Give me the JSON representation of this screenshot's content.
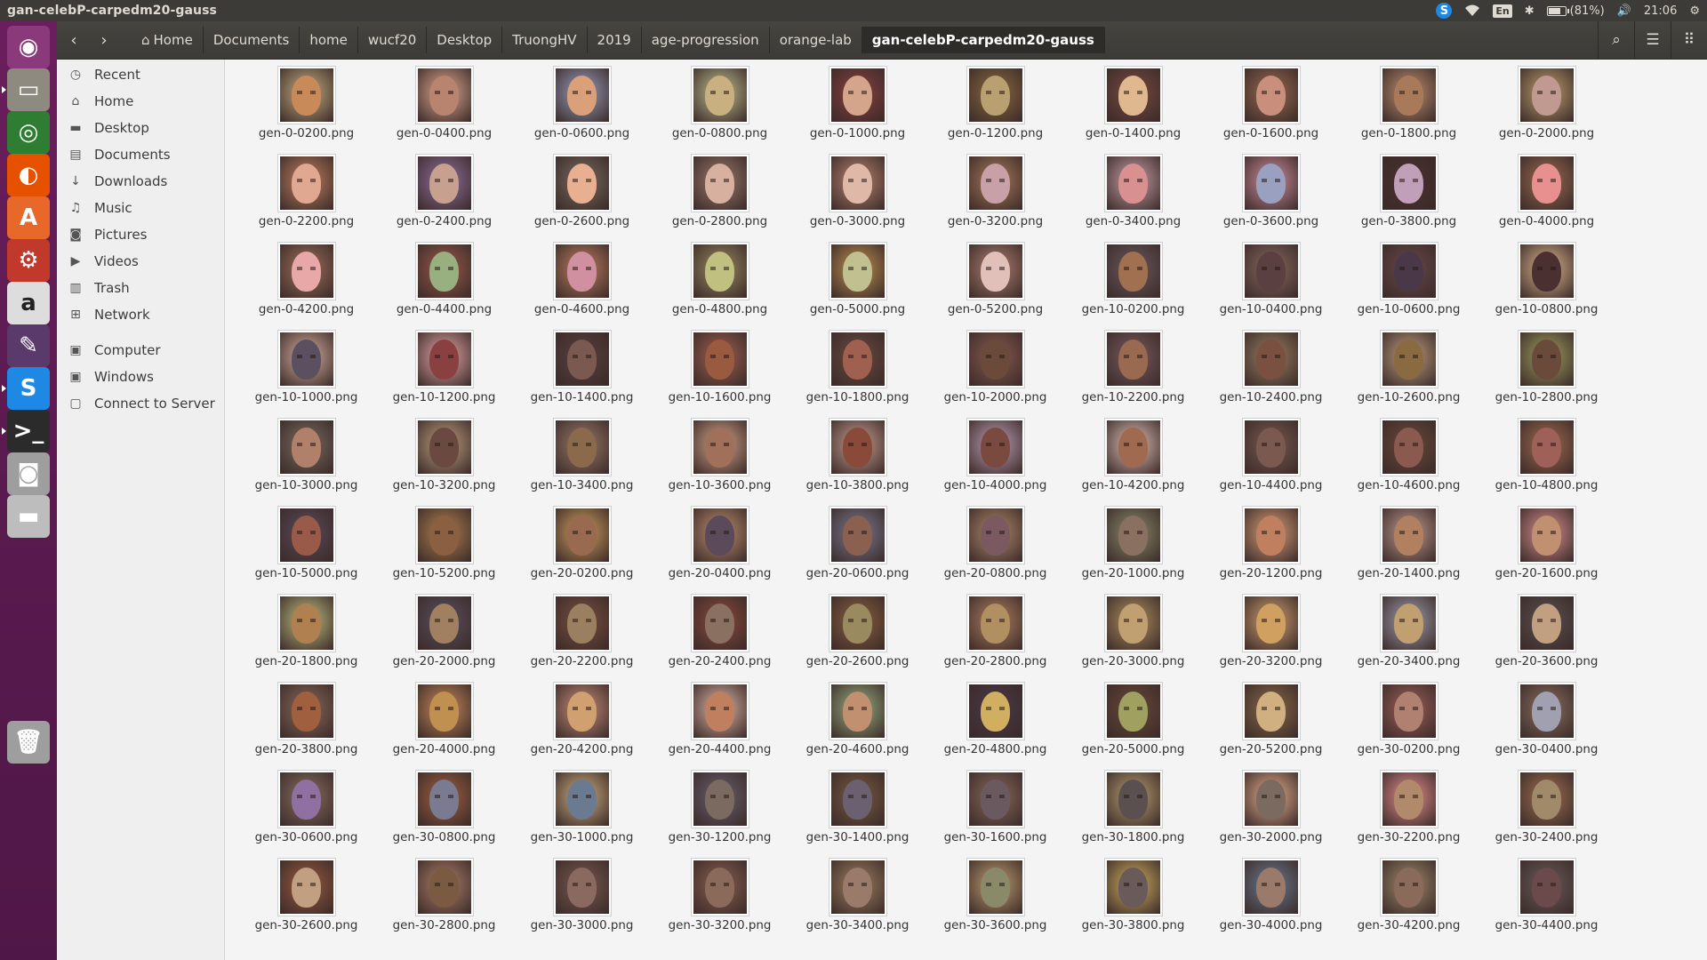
{
  "window": {
    "title": "gan-celebP-carpedm20-gauss"
  },
  "tray": {
    "skype": "S",
    "lang": "En",
    "battery": "(81%)",
    "battery_level": 0.81,
    "time": "21:06"
  },
  "launcher": [
    {
      "name": "ubuntu-dash-icon",
      "color": "#8a3a7a",
      "glyph": "◉"
    },
    {
      "name": "file-manager-icon",
      "color": "#8f8a80",
      "glyph": "▭",
      "running": true
    },
    {
      "name": "chrome-icon",
      "color": "#2e7d32",
      "glyph": "◎"
    },
    {
      "name": "firefox-icon",
      "color": "#e65100",
      "glyph": "◐"
    },
    {
      "name": "software-center-icon",
      "color": "#e8682a",
      "glyph": "A"
    },
    {
      "name": "system-settings-icon",
      "color": "#c0392b",
      "glyph": "⚙"
    },
    {
      "name": "amazon-icon",
      "color": "#dddddd",
      "glyph": "a"
    },
    {
      "name": "libreoffice-draw-icon",
      "color": "#5a3a6a",
      "glyph": "✎"
    },
    {
      "name": "skype-icon",
      "color": "#1e88e5",
      "glyph": "S",
      "running": true
    },
    {
      "name": "terminal-icon",
      "color": "#2b2b2b",
      "glyph": ">_",
      "running": true
    },
    {
      "name": "camera-icon",
      "color": "#9e9e9e",
      "glyph": "◙"
    },
    {
      "name": "drive-icon",
      "color": "#bdbdbd",
      "glyph": "▬"
    },
    {
      "name": "trash-icon",
      "color": "#9e9e9e",
      "glyph": "🗑"
    }
  ],
  "toolbar": {
    "back": "‹",
    "forward": "›",
    "breadcrumb": [
      "Home",
      "Documents",
      "home",
      "wucf20",
      "Desktop",
      "TruongHV",
      "2019",
      "age-progression",
      "orange-lab",
      "gan-celebP-carpedm20-gauss"
    ]
  },
  "sidebar": {
    "places": [
      {
        "label": "Recent",
        "icon": "clock-icon",
        "glyph": "◷"
      },
      {
        "label": "Home",
        "icon": "home-icon",
        "glyph": "⌂"
      },
      {
        "label": "Desktop",
        "icon": "folder-icon",
        "glyph": "▬"
      },
      {
        "label": "Documents",
        "icon": "document-icon",
        "glyph": "▤"
      },
      {
        "label": "Downloads",
        "icon": "download-icon",
        "glyph": "↓"
      },
      {
        "label": "Music",
        "icon": "music-icon",
        "glyph": "♫"
      },
      {
        "label": "Pictures",
        "icon": "camera-icon",
        "glyph": "◙"
      },
      {
        "label": "Videos",
        "icon": "video-icon",
        "glyph": "▶"
      },
      {
        "label": "Trash",
        "icon": "trash-icon",
        "glyph": "▥"
      },
      {
        "label": "Network",
        "icon": "network-icon",
        "glyph": "⊞"
      }
    ],
    "devices": [
      {
        "label": "Computer",
        "icon": "computer-icon",
        "glyph": "▣"
      },
      {
        "label": "Windows",
        "icon": "drive-icon",
        "glyph": "▣"
      },
      {
        "label": "Connect to Server",
        "icon": "server-icon",
        "glyph": "▢"
      }
    ]
  },
  "files": [
    "gen-0-0200.png",
    "gen-0-0400.png",
    "gen-0-0600.png",
    "gen-0-0800.png",
    "gen-0-1000.png",
    "gen-0-1200.png",
    "gen-0-1400.png",
    "gen-0-1600.png",
    "gen-0-1800.png",
    "gen-0-2000.png",
    "gen-0-2200.png",
    "gen-0-2400.png",
    "gen-0-2600.png",
    "gen-0-2800.png",
    "gen-0-3000.png",
    "gen-0-3200.png",
    "gen-0-3400.png",
    "gen-0-3600.png",
    "gen-0-3800.png",
    "gen-0-4000.png",
    "gen-0-4200.png",
    "gen-0-4400.png",
    "gen-0-4600.png",
    "gen-0-4800.png",
    "gen-0-5000.png",
    "gen-0-5200.png",
    "gen-10-0200.png",
    "gen-10-0400.png",
    "gen-10-0600.png",
    "gen-10-0800.png",
    "gen-10-1000.png",
    "gen-10-1200.png",
    "gen-10-1400.png",
    "gen-10-1600.png",
    "gen-10-1800.png",
    "gen-10-2000.png",
    "gen-10-2200.png",
    "gen-10-2400.png",
    "gen-10-2600.png",
    "gen-10-2800.png",
    "gen-10-3000.png",
    "gen-10-3200.png",
    "gen-10-3400.png",
    "gen-10-3600.png",
    "gen-10-3800.png",
    "gen-10-4000.png",
    "gen-10-4200.png",
    "gen-10-4400.png",
    "gen-10-4600.png",
    "gen-10-4800.png",
    "gen-10-5000.png",
    "gen-10-5200.png",
    "gen-20-0200.png",
    "gen-20-0400.png",
    "gen-20-0600.png",
    "gen-20-0800.png",
    "gen-20-1000.png",
    "gen-20-1200.png",
    "gen-20-1400.png",
    "gen-20-1600.png",
    "gen-20-1800.png",
    "gen-20-2000.png",
    "gen-20-2200.png",
    "gen-20-2400.png",
    "gen-20-2600.png",
    "gen-20-2800.png",
    "gen-20-3000.png",
    "gen-20-3200.png",
    "gen-20-3400.png",
    "gen-20-3600.png",
    "gen-20-3800.png",
    "gen-20-4000.png",
    "gen-20-4200.png",
    "gen-20-4400.png",
    "gen-20-4600.png",
    "gen-20-4800.png",
    "gen-20-5000.png",
    "gen-20-5200.png",
    "gen-30-0200.png",
    "gen-30-0400.png",
    "gen-30-0600.png",
    "gen-30-0800.png",
    "gen-30-1000.png",
    "gen-30-1200.png",
    "gen-30-1400.png",
    "gen-30-1600.png",
    "gen-30-1800.png",
    "gen-30-2000.png",
    "gen-30-2200.png",
    "gen-30-2400.png",
    "gen-30-2600.png",
    "gen-30-2800.png",
    "gen-30-3000.png",
    "gen-30-3200.png",
    "gen-30-3400.png",
    "gen-30-3600.png",
    "gen-30-3800.png",
    "gen-30-4000.png",
    "gen-30-4200.png",
    "gen-30-4400.png"
  ],
  "thumb_palette": [
    "#c98a5a",
    "#b88470",
    "#d9a07a",
    "#c8b080",
    "#d4a58a",
    "#b9a070",
    "#e0b890",
    "#c98f7c",
    "#a87a5a",
    "#c09a90",
    "#e0a890",
    "#c8a090",
    "#e8b090",
    "#d8b0a0",
    "#e0b8a8",
    "#c8a0a8",
    "#d89090",
    "#9aa0c0",
    "#c0a0b8",
    "#e89090",
    "#e8a8a8",
    "#98b080",
    "#d090a0",
    "#c0c080",
    "#c0c090",
    "#e0c0b8",
    "#a07050",
    "#5a4040",
    "#4a3848",
    "#4a3030",
    "#5a5060",
    "#8a4040",
    "#7a5a50",
    "#9a5a40",
    "#a06050",
    "#6a4a3a",
    "#9a6a50",
    "#7a5040",
    "#8a6a40",
    "#6a4a3a",
    "#b0806a",
    "#6a4a40",
    "#8a6a4a",
    "#a0705a",
    "#8a4a3a",
    "#7a4a40",
    "#a06a50",
    "#7a5a50",
    "#8a5a50",
    "#a0605a",
    "#9a5a4a",
    "#8a6040",
    "#9a6a50",
    "#5a4a5a",
    "#8a6050",
    "#7a5a60",
    "#8a7060",
    "#c08060",
    "#b08060",
    "#c09070",
    "#b08050",
    "#a08060",
    "#9a8060",
    "#8a7060",
    "#9a8a60",
    "#b09060",
    "#c0a070",
    "#d0a060",
    "#c0a070",
    "#c0a080",
    "#a06040",
    "#c09050",
    "#d0a070",
    "#c08060",
    "#c09070",
    "#d0b060",
    "#a0a060",
    "#d0b080",
    "#b08070",
    "#a0a0b0",
    "#9070a0",
    "#7a7a90",
    "#6a7a90",
    "#7a6a60",
    "#6a6070",
    "#6a5a60",
    "#5a5050",
    "#7a6a60",
    "#b08a6a",
    "#a08a6a",
    "#c0a080",
    "#7a5a40",
    "#8a6a60",
    "#8a6a5a",
    "#9a7a6a",
    "#8a8a6a",
    "#6a5a5a",
    "#9a7a6a",
    "#8a6a5a",
    "#6a4a4a"
  ]
}
